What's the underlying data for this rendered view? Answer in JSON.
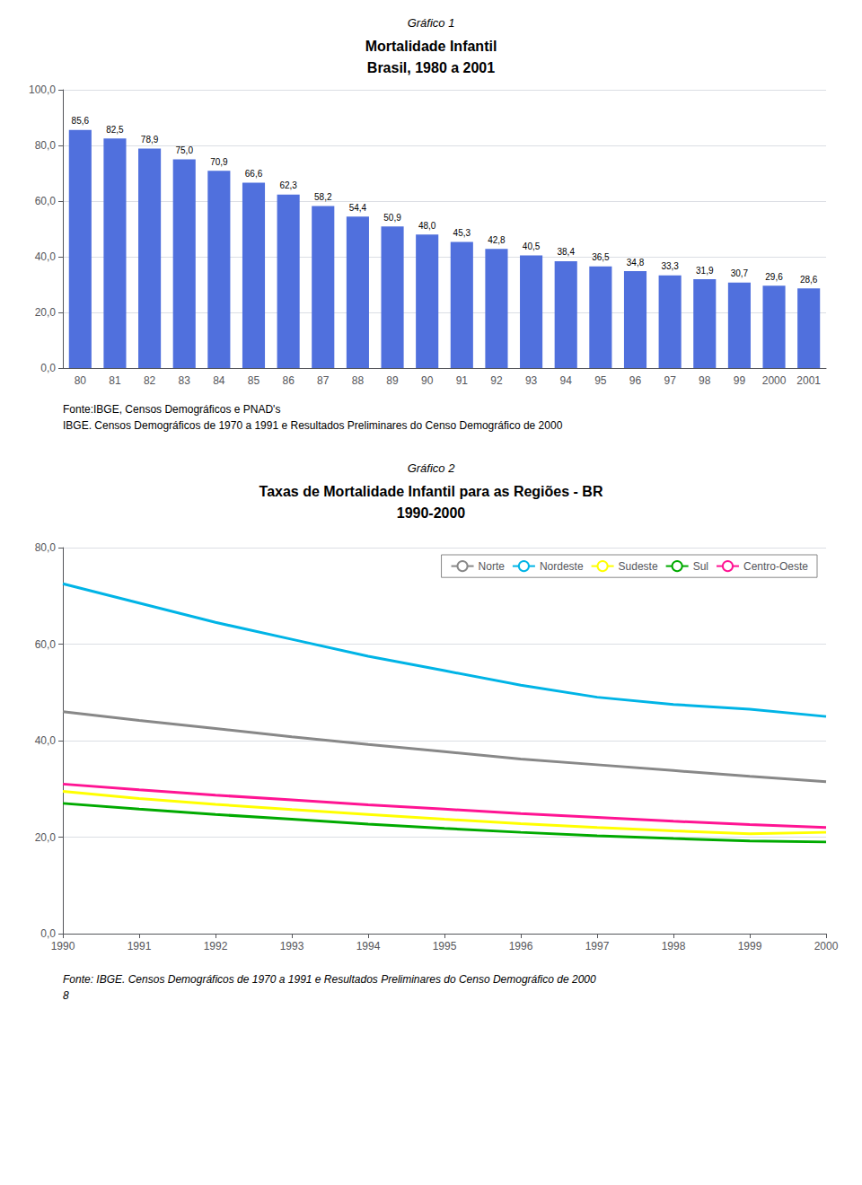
{
  "chart_data": [
    {
      "type": "bar",
      "title": [
        "Gráfico 1",
        "Mortalidade Infantil",
        "Brasil, 1980 a 2001"
      ],
      "categories": [
        "80",
        "81",
        "82",
        "83",
        "84",
        "85",
        "86",
        "87",
        "88",
        "89",
        "90",
        "91",
        "92",
        "93",
        "94",
        "95",
        "96",
        "97",
        "98",
        "99",
        "2000",
        "2001"
      ],
      "values": [
        85.6,
        82.5,
        78.9,
        75.0,
        70.9,
        66.6,
        62.3,
        58.2,
        54.4,
        50.9,
        48.0,
        45.3,
        42.8,
        40.5,
        38.4,
        36.5,
        34.8,
        33.3,
        31.9,
        30.7,
        29.6,
        28.6
      ],
      "value_labels": [
        "85,6",
        "82,5",
        "78,9",
        "75,0",
        "70,9",
        "66,6",
        "62,3",
        "58,2",
        "54,4",
        "50,9",
        "48,0",
        "45,3",
        "42,8",
        "40,5",
        "38,4",
        "36,5",
        "34,8",
        "33,3",
        "31,9",
        "30,7",
        "29,6",
        "28,6"
      ],
      "data_labels": true,
      "ylim": [
        0,
        100
      ],
      "yticks": [
        {
          "value": 0,
          "label": "0,0"
        },
        {
          "value": 20,
          "label": "20,0"
        },
        {
          "value": 40,
          "label": "40,0"
        },
        {
          "value": 60,
          "label": "60,0"
        },
        {
          "value": 80,
          "label": "80,0"
        },
        {
          "value": 100,
          "label": "100,0"
        }
      ],
      "grid": true,
      "annotations": [
        "Fonte:IBGE, Censos Demográficos e PNAD's",
        "IBGE. Censos Demográficos de 1970 a 1991 e Resultados Preliminares do Censo Demográfico de 2000"
      ]
    },
    {
      "type": "line",
      "title": [
        "Gráfico 2",
        "Taxas de Mortalidade Infantil para as Regiões - BR",
        "1990-2000"
      ],
      "x": [
        1990,
        1991,
        1992,
        1993,
        1994,
        1995,
        1996,
        1997,
        1998,
        1999,
        2000
      ],
      "series": [
        {
          "name": "Norte",
          "color": "#888888",
          "values": [
            46.0,
            44.2,
            42.5,
            40.8,
            39.2,
            37.7,
            36.2,
            35.0,
            33.8,
            32.6,
            31.5
          ]
        },
        {
          "name": "Nordeste",
          "color": "#00b4e6",
          "values": [
            72.5,
            68.5,
            64.5,
            61.0,
            57.5,
            54.5,
            51.5,
            49.0,
            47.5,
            46.5,
            45.0
          ]
        },
        {
          "name": "Sudeste",
          "color": "#ffff00",
          "values": [
            29.5,
            28.0,
            26.8,
            25.7,
            24.7,
            23.7,
            22.8,
            22.0,
            21.3,
            20.7,
            21.0
          ]
        },
        {
          "name": "Sul",
          "color": "#00aa00",
          "values": [
            27.0,
            25.8,
            24.7,
            23.7,
            22.7,
            21.8,
            21.0,
            20.3,
            19.7,
            19.2,
            19.0
          ]
        },
        {
          "name": "Centro-Oeste",
          "color": "#ff1493",
          "values": [
            31.0,
            29.8,
            28.7,
            27.7,
            26.7,
            25.8,
            24.9,
            24.1,
            23.3,
            22.6,
            22.0
          ]
        }
      ],
      "xlim": [
        1990,
        2000
      ],
      "xticks": [
        1990,
        1991,
        1992,
        1993,
        1994,
        1995,
        1996,
        1997,
        1998,
        1999,
        2000
      ],
      "ylim": [
        0,
        80
      ],
      "yticks": [
        {
          "value": 0,
          "label": "0,0"
        },
        {
          "value": 20,
          "label": "20,0"
        },
        {
          "value": 40,
          "label": "40,0"
        },
        {
          "value": 60,
          "label": "60,0"
        },
        {
          "value": 80,
          "label": "80,0"
        }
      ],
      "grid": true,
      "legend": "upper right",
      "annotations": [
        "Fonte: IBGE. Censos Demográficos de 1970 a 1991 e Resultados Preliminares do Censo Demográfico de 2000",
        "8"
      ]
    }
  ]
}
